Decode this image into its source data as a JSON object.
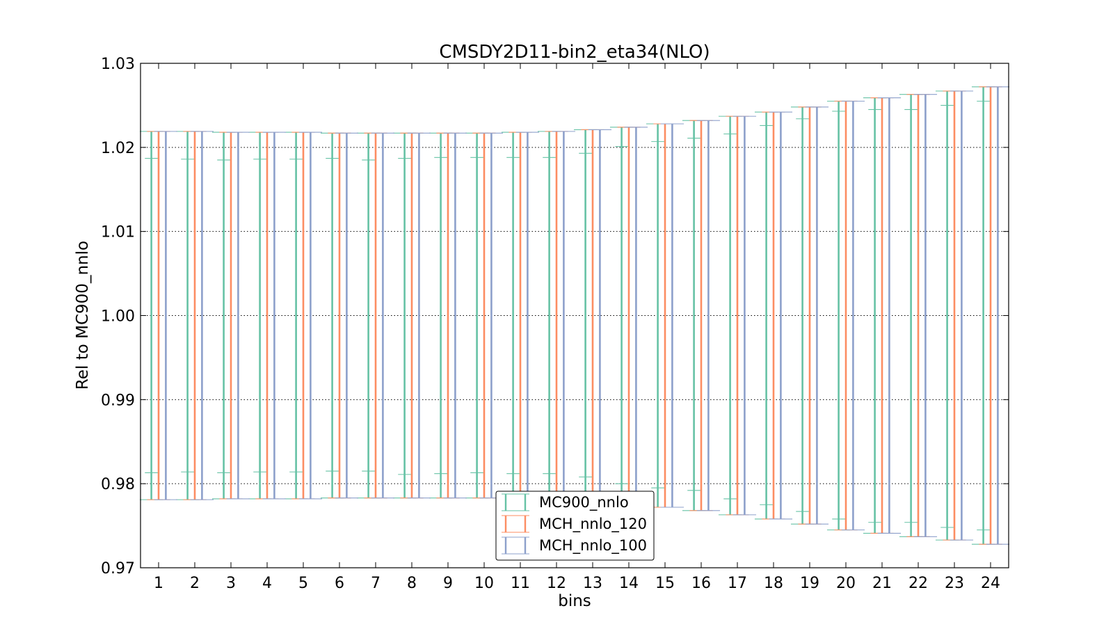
{
  "chart_data": {
    "type": "errorbar",
    "title": "CMSDY2D11-bin2_eta34(NLO)",
    "xlabel": "bins",
    "ylabel": "Rel to MC900_nnlo",
    "ylim": [
      0.97,
      1.03
    ],
    "xlim": [
      0.5,
      24.5
    ],
    "yticks": [
      "0.97",
      "0.98",
      "0.99",
      "1.00",
      "1.01",
      "1.02",
      "1.03"
    ],
    "categories": [
      "1",
      "2",
      "3",
      "4",
      "5",
      "6",
      "7",
      "8",
      "9",
      "10",
      "11",
      "12",
      "13",
      "14",
      "15",
      "16",
      "17",
      "18",
      "19",
      "20",
      "21",
      "22",
      "23",
      "24"
    ],
    "grid": "y-dotted",
    "legend_position": "lower-center",
    "series": [
      {
        "name": "MC900_nnlo",
        "color": "#66c2a5",
        "upper": [
          1.0219,
          1.0219,
          1.0218,
          1.0218,
          1.0218,
          1.0217,
          1.0217,
          1.0217,
          1.0217,
          1.0217,
          1.0218,
          1.0219,
          1.0221,
          1.0224,
          1.0228,
          1.0232,
          1.0237,
          1.0242,
          1.0248,
          1.0255,
          1.0259,
          1.0263,
          1.0267,
          1.0272
        ],
        "lower": [
          0.9781,
          0.9781,
          0.9782,
          0.9782,
          0.9782,
          0.9783,
          0.9783,
          0.9783,
          0.9783,
          0.9783,
          0.9782,
          0.9781,
          0.9779,
          0.9776,
          0.9772,
          0.9768,
          0.9763,
          0.9758,
          0.9752,
          0.9745,
          0.9741,
          0.9737,
          0.9733,
          0.9728
        ],
        "inner_upper": [
          1.0187,
          1.0186,
          1.0185,
          1.0186,
          1.0186,
          1.0187,
          1.0185,
          1.0187,
          1.0188,
          1.0188,
          1.0188,
          1.0188,
          1.0193,
          1.0201,
          1.0207,
          1.0211,
          1.0216,
          1.0226,
          1.0234,
          1.0243,
          1.0245,
          1.0245,
          1.025,
          1.0255
        ],
        "inner_lower": [
          0.9813,
          0.9814,
          0.9813,
          0.9814,
          0.9814,
          0.9815,
          0.9815,
          0.9811,
          0.9812,
          0.9813,
          0.9812,
          0.9812,
          0.9808,
          0.98,
          0.9795,
          0.9792,
          0.9782,
          0.9775,
          0.9767,
          0.9758,
          0.9754,
          0.9754,
          0.9748,
          0.9745
        ]
      },
      {
        "name": "MCH_nnlo_120",
        "color": "#fc8d62",
        "upper": [
          1.0219,
          1.0219,
          1.0218,
          1.0218,
          1.0218,
          1.0217,
          1.0217,
          1.0217,
          1.0217,
          1.0217,
          1.0218,
          1.0219,
          1.0221,
          1.0224,
          1.0228,
          1.0232,
          1.0237,
          1.0242,
          1.0248,
          1.0255,
          1.0259,
          1.0263,
          1.0267,
          1.0272
        ],
        "lower": [
          0.9781,
          0.9781,
          0.9782,
          0.9782,
          0.9782,
          0.9783,
          0.9783,
          0.9783,
          0.9783,
          0.9783,
          0.9782,
          0.9781,
          0.9779,
          0.9776,
          0.9772,
          0.9768,
          0.9763,
          0.9758,
          0.9752,
          0.9745,
          0.9741,
          0.9737,
          0.9733,
          0.9728
        ]
      },
      {
        "name": "MCH_nnlo_100",
        "color": "#8da0cb",
        "upper": [
          1.0219,
          1.0219,
          1.0218,
          1.0218,
          1.0218,
          1.0217,
          1.0217,
          1.0217,
          1.0217,
          1.0217,
          1.0218,
          1.0219,
          1.0221,
          1.0224,
          1.0228,
          1.0232,
          1.0237,
          1.0242,
          1.0248,
          1.0255,
          1.0259,
          1.0263,
          1.0267,
          1.0272
        ],
        "lower": [
          0.9781,
          0.9781,
          0.9782,
          0.9782,
          0.9782,
          0.9783,
          0.9783,
          0.9783,
          0.9783,
          0.9783,
          0.9782,
          0.9781,
          0.9779,
          0.9776,
          0.9772,
          0.9768,
          0.9763,
          0.9758,
          0.9752,
          0.9745,
          0.9741,
          0.9737,
          0.9733,
          0.9728
        ]
      }
    ]
  }
}
